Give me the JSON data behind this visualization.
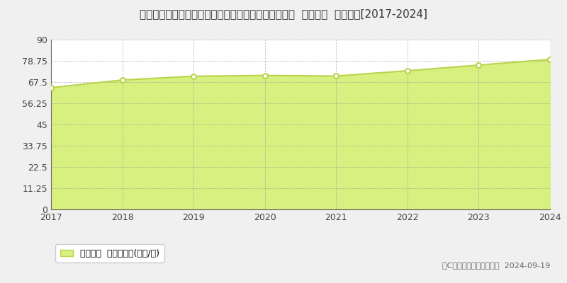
{
  "title": "埼玉県さいたま市緑区大字下野田字本村５２４番４外  基準地価  地価推移[2017-2024]",
  "years": [
    2017,
    2018,
    2019,
    2020,
    2021,
    2022,
    2023,
    2024
  ],
  "values": [
    64.5,
    68.6,
    70.6,
    71.0,
    70.7,
    73.5,
    76.5,
    79.5
  ],
  "ylim": [
    0,
    90
  ],
  "yticks": [
    0,
    11.25,
    22.5,
    33.75,
    45,
    56.25,
    67.5,
    78.75,
    90
  ],
  "line_color": "#b8d44a",
  "fill_color": "#d8f080",
  "marker_color": "#ffffff",
  "marker_edge_color": "#b8d44a",
  "grid_color": "#999999",
  "background_color": "#f0f0f0",
  "plot_bg_color": "#ffffff",
  "legend_label": "基準地価  平均坪単価(万円/坪)",
  "copyright_text": "（C）土地価格ドットコム  2024-09-19",
  "title_fontsize": 11,
  "axis_fontsize": 9,
  "legend_fontsize": 9
}
